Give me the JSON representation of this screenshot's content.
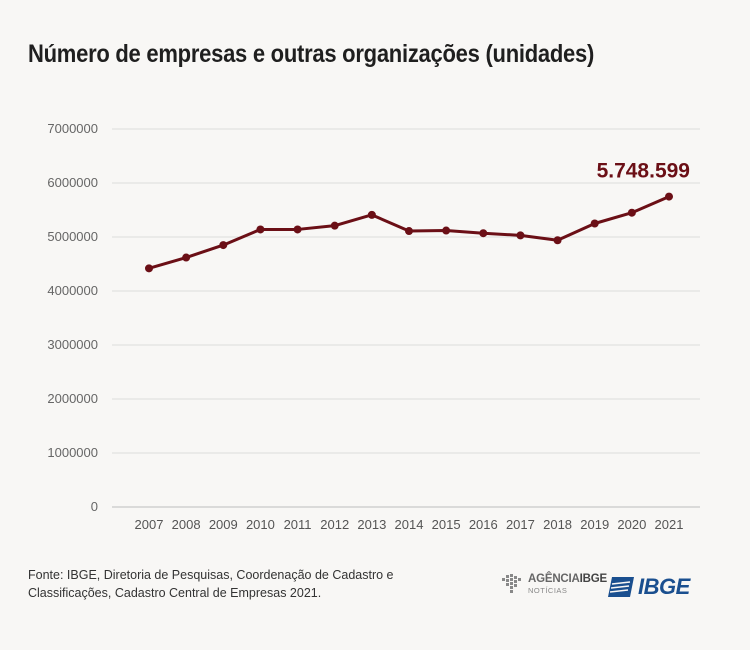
{
  "chart_data": {
    "type": "line",
    "title": "Número de empresas e outras organizações (unidades)",
    "xlabel": "",
    "ylabel": "",
    "x": [
      "2007",
      "2008",
      "2009",
      "2010",
      "2011",
      "2012",
      "2013",
      "2014",
      "2015",
      "2016",
      "2017",
      "2018",
      "2019",
      "2020",
      "2021"
    ],
    "values": [
      4420000,
      4620000,
      4850000,
      5140000,
      5140000,
      5210000,
      5410000,
      5110000,
      5120000,
      5070000,
      5030000,
      4940000,
      5250000,
      5450000,
      5748599
    ],
    "ylim": [
      0,
      7000000
    ],
    "yticks": [
      "0",
      "1000000",
      "2000000",
      "3000000",
      "4000000",
      "5000000",
      "6000000",
      "7000000"
    ],
    "grid": true,
    "line_color": "#6b0f16",
    "highlight": {
      "index": 14,
      "label": "5.748.599"
    }
  },
  "footer": {
    "source_line1": "Fonte: IBGE, Diretoria de Pesquisas, Coordenação de Cadastro e",
    "source_line2": "Classificações, Cadastro Central de Empresas 2021.",
    "logo_agencia_main": "AGÊNCIA",
    "logo_agencia_bold": "IBGE",
    "logo_agencia_sub": "NOTÍCIAS",
    "logo_ibge": "IBGE"
  }
}
